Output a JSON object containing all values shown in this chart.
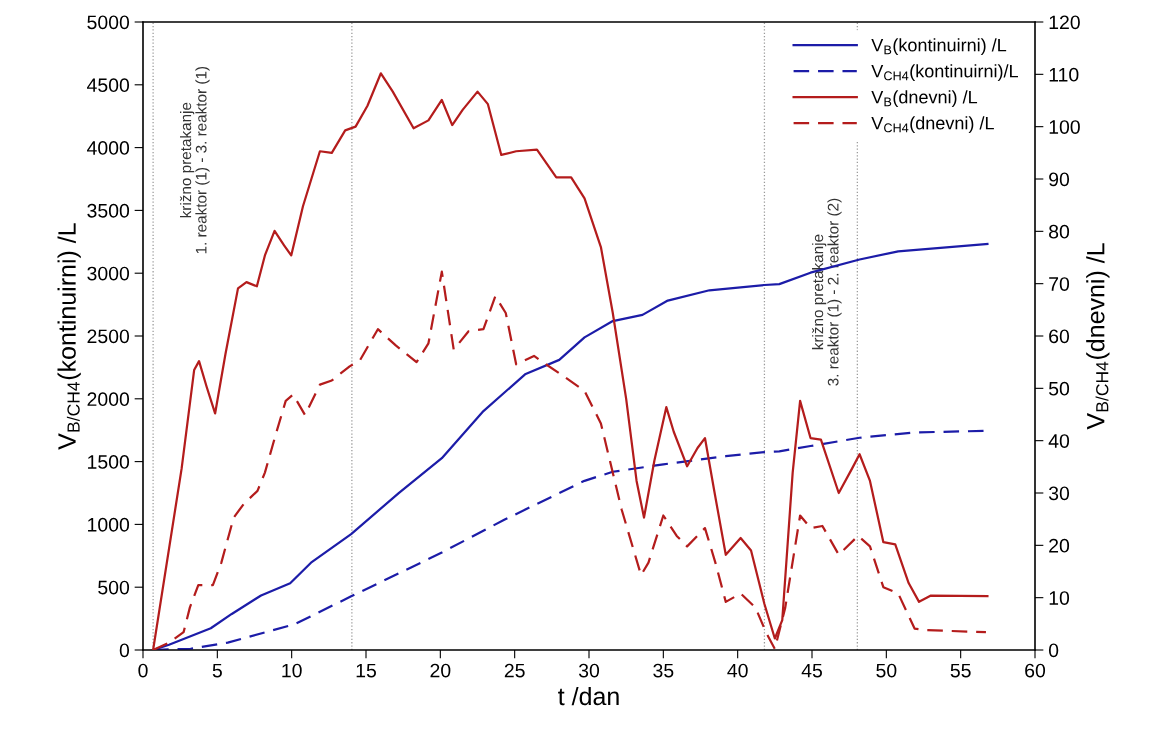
{
  "chart_data": {
    "type": "line",
    "xlabel": "t /dan",
    "ylabel": "V$_{B/CH4}$(kontinuirni) /L",
    "y2label": "V$_{B/CH4}$(dnevni) /L",
    "xlim": [
      0,
      60
    ],
    "xticks": [
      0,
      5,
      10,
      15,
      20,
      25,
      30,
      35,
      40,
      45,
      50,
      55,
      60
    ],
    "ylim": [
      0,
      5000
    ],
    "yticks": [
      0,
      500,
      1000,
      1500,
      2000,
      2500,
      3000,
      3500,
      4000,
      4500,
      5000
    ],
    "y2lim": [
      0,
      120
    ],
    "y2ticks": [
      0,
      10,
      20,
      30,
      40,
      50,
      60,
      70,
      80,
      90,
      100,
      110,
      120
    ],
    "grid": false,
    "legend": "top right",
    "marker": "none",
    "series": [
      {
        "name": "V$_{B}$(kontinuirni) /L",
        "color": "#1c1ca8",
        "line_style": "solid",
        "axis": "y",
        "x": [
          0.68,
          1.75,
          4.56,
          5.97,
          7.94,
          9.9,
          11.3,
          14.0,
          17.2,
          20.1,
          22.9,
          25.7,
          28.0,
          29.7,
          31.6,
          33.6,
          35.3,
          38.1,
          41.8,
          42.8,
          44.9,
          48.2,
          50.8,
          56.8
        ],
        "values": [
          0,
          42,
          173,
          287,
          434,
          532,
          695,
          923,
          1249,
          1527,
          1902,
          2195,
          2310,
          2489,
          2619,
          2668,
          2782,
          2864,
          2906,
          2913,
          3004,
          3109,
          3174,
          3233
        ]
      },
      {
        "name": "V$_{CH4}$(kontinuirni)/L",
        "color": "#1c1ca8",
        "line_style": "dashed",
        "axis": "y",
        "x": [
          0.68,
          3.2,
          5.7,
          10.2,
          14.0,
          20.1,
          24.3,
          28.0,
          29.7,
          31.6,
          35.0,
          39.2,
          41.8,
          42.8,
          44.9,
          48.2,
          51.9,
          56.7
        ],
        "values": [
          0,
          10,
          59,
          205,
          427,
          776,
          1037,
          1249,
          1347,
          1419,
          1478,
          1543,
          1576,
          1582,
          1624,
          1690,
          1732,
          1745
        ]
      },
      {
        "name": "V$_{B}$(dnevni) /L",
        "color": "#b41c1c",
        "line_style": "solid",
        "axis": "y2",
        "x": [
          0.68,
          2.6,
          3.44,
          3.77,
          4.28,
          4.85,
          5.55,
          6.39,
          6.96,
          7.66,
          8.2,
          8.85,
          9.49,
          9.97,
          10.76,
          11.9,
          12.7,
          13.6,
          14.3,
          15.1,
          16.0,
          16.8,
          18.2,
          19.2,
          20.1,
          20.8,
          21.5,
          22.5,
          23.2,
          24.1,
          25.1,
          26.5,
          27.8,
          28.8,
          29.7,
          30.8,
          31.6,
          32.5,
          33.2,
          33.7,
          34.4,
          35.2,
          35.7,
          36.6,
          37.3,
          37.8,
          38.4,
          39.2,
          40.2,
          40.9,
          41.8,
          42.5,
          43.0,
          43.7,
          44.2,
          44.9,
          45.6,
          46.8,
          47.7,
          48.2,
          48.9,
          49.8,
          50.6,
          51.5,
          52.2,
          53.0,
          56.8
        ],
        "values": [
          0,
          34.7,
          53.5,
          55.2,
          50.3,
          45.2,
          56.6,
          69.1,
          70.3,
          69.5,
          75.4,
          80.1,
          77.3,
          75.4,
          84.8,
          95.3,
          95,
          99.3,
          100,
          104,
          110.2,
          106.7,
          99.7,
          101.2,
          105.1,
          100.3,
          103.2,
          106.7,
          104.3,
          94.6,
          95.3,
          95.6,
          90.3,
          90.3,
          86.3,
          77,
          64.4,
          48,
          32.3,
          25.3,
          36.2,
          46.4,
          41.7,
          35.1,
          38.6,
          40.5,
          30.8,
          18.2,
          21.4,
          19,
          8.8,
          2.2,
          5.7,
          33.9,
          47.6,
          40.5,
          40.2,
          30,
          34.7,
          37.4,
          32.3,
          20.6,
          20.2,
          12.8,
          9.2,
          10.4,
          10.3
        ]
      },
      {
        "name": "V$_{CH4}$(dnevni) /L",
        "color": "#b41c1c",
        "line_style": "dashed",
        "axis": "y2",
        "x": [
          0.68,
          1.75,
          2.73,
          3.15,
          3.72,
          4.7,
          5.27,
          6.1,
          6.8,
          7.7,
          8.2,
          8.9,
          9.6,
          10.1,
          10.9,
          11.9,
          12.7,
          13.9,
          14.6,
          15.8,
          17.0,
          18.4,
          19.2,
          20.1,
          20.9,
          21.9,
          22.9,
          23.7,
          24.4,
          25.1,
          26.3,
          27.1,
          28.1,
          29.7,
          30.8,
          32.2,
          33.5,
          34.0,
          35.0,
          35.9,
          36.6,
          37.8,
          38.5,
          39.2,
          40.2,
          41.2,
          41.9,
          42.5,
          43.2,
          44.2,
          44.9,
          45.7,
          46.8,
          48.1,
          48.9,
          49.8,
          50.8,
          51.9,
          52.7,
          56.7
        ],
        "values": [
          0,
          1.4,
          3.4,
          8.1,
          12.4,
          12.4,
          16.7,
          25.3,
          28,
          30.4,
          33.9,
          40.9,
          47.6,
          48.8,
          44.9,
          50.7,
          51.5,
          54.2,
          55.4,
          61.3,
          58.2,
          55,
          58.6,
          72.3,
          57.4,
          60.9,
          61.3,
          67.6,
          64.4,
          54.6,
          56.2,
          54.6,
          52.7,
          49.5,
          43.3,
          26.8,
          14.3,
          16.7,
          25.7,
          21.8,
          19.8,
          23.3,
          16.7,
          9.2,
          10.8,
          8.1,
          3.4,
          0.2,
          8.1,
          25.7,
          23.3,
          23.7,
          18.2,
          21.8,
          19.8,
          12,
          10.8,
          4.1,
          3.8,
          3.4
        ]
      }
    ],
    "ref_lines": [
      {
        "axis": "x",
        "value": 0.68,
        "color": "#999999",
        "line_style": "dotted",
        "label": "križno pretakanje\n1. reaktor (1) - 3. reaktor (1)"
      },
      {
        "axis": "x",
        "value": 14.05,
        "color": "#999999",
        "line_style": "dotted"
      },
      {
        "axis": "x",
        "value": 41.8,
        "color": "#999999",
        "line_style": "dotted"
      },
      {
        "axis": "x",
        "value": 48.05,
        "color": "#999999",
        "line_style": "dotted",
        "label": "križno pretakanje\n3. reaktor (1) - 2. reaktor (2)"
      }
    ]
  }
}
